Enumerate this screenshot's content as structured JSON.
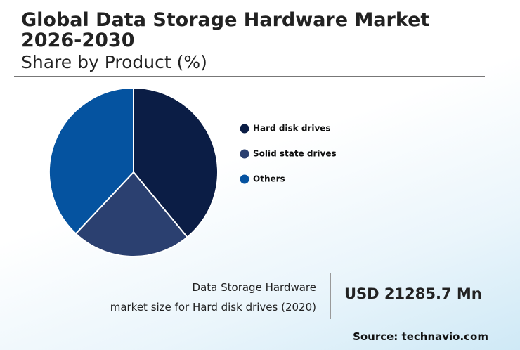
{
  "chart_data": {
    "type": "pie",
    "title": "Global Data Storage Hardware Market 2026-2030",
    "subtitle": "Share by Product (%)",
    "categories": [
      "Hard disk drives",
      "Solid state drives",
      "Others"
    ],
    "values": [
      39,
      23,
      38
    ],
    "colors": [
      "#0b1d45",
      "#2b4070",
      "#0553a0"
    ]
  },
  "footer": {
    "caption": [
      "Data Storage Hardware",
      "market size for Hard disk drives (2020)"
    ],
    "value": "USD 21285.7 Mn",
    "source": "Source: technavio.com"
  }
}
